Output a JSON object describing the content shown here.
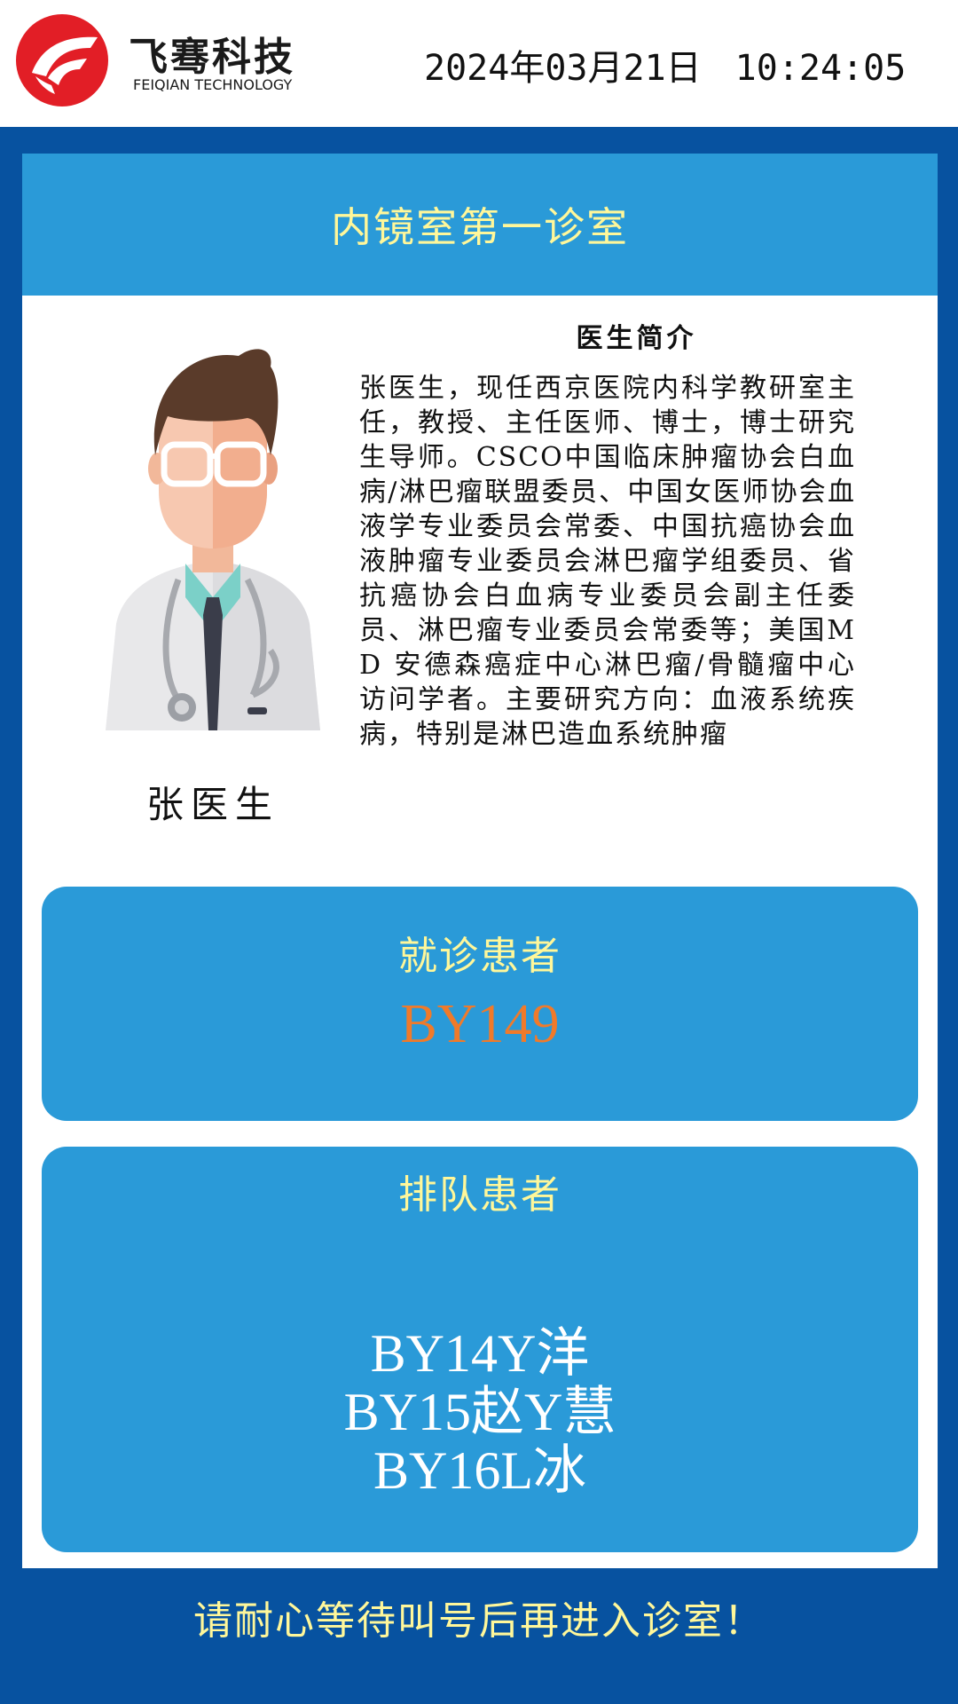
{
  "header": {
    "brand_cn": "飞骞科技",
    "brand_en": "FEIQIAN TECHNOLOGY",
    "date": "2024年03月21日",
    "time": "10:24:05",
    "logo_icon": "feiqian-logo-icon",
    "colors": {
      "logo_red": "#e21e26",
      "text": "#1a1a1a"
    }
  },
  "room": {
    "title": "内镜室第一诊室"
  },
  "doctor": {
    "name": "张医生",
    "intro_title": "医生简介",
    "intro_text": "张医生，现任西京医院内科学教研室主任，教授、主任医师、博士，博士研究生导师。CSCO中国临床肿瘤协会白血病/淋巴瘤联盟委员、中国女医师协会血液学专业委员会常委、中国抗癌协会血液肿瘤专业委员会淋巴瘤学组委员、省抗癌协会白血病专业委员会副主任委员、淋巴瘤专业委员会常委等；美国MD 安德森癌症中心淋巴瘤/骨髓瘤中心访问学者。主要研究方向：血液系统疾病，特别是淋巴造血系统肿瘤",
    "avatar_icon": "doctor-avatar-icon"
  },
  "current_patient": {
    "label": "就诊患者",
    "number": "BY149"
  },
  "queue": {
    "label": "排队患者",
    "items": [
      "BY14Y洋",
      "BY15赵Y慧",
      "BY16L冰"
    ]
  },
  "footer": {
    "note": "请耐心等待叫号后再进入诊室！"
  },
  "colors": {
    "background": "#0752a0",
    "accent_blue": "#2a9ad8",
    "label_yellow": "#fff79a",
    "number_orange": "#f07a2a"
  }
}
